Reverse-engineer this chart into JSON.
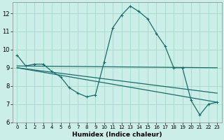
{
  "title": "",
  "xlabel": "Humidex (Indice chaleur)",
  "bg_color": "#cceee8",
  "grid_color": "#aaddcc",
  "line_color": "#1a6b6b",
  "xlim": [
    -0.5,
    23.5
  ],
  "ylim": [
    6,
    12.6
  ],
  "yticks": [
    6,
    7,
    8,
    9,
    10,
    11,
    12
  ],
  "xticks": [
    0,
    1,
    2,
    3,
    4,
    5,
    6,
    7,
    8,
    9,
    10,
    11,
    12,
    13,
    14,
    15,
    16,
    17,
    18,
    19,
    20,
    21,
    22,
    23
  ],
  "series0_x": [
    0,
    1,
    2,
    3,
    4,
    5,
    6,
    7,
    8,
    9,
    10,
    11,
    12,
    13,
    14,
    15,
    16,
    17,
    18,
    19,
    20,
    21,
    22,
    23
  ],
  "series0_y": [
    9.7,
    9.1,
    9.2,
    9.2,
    8.8,
    8.5,
    7.9,
    7.6,
    7.4,
    7.5,
    9.3,
    11.2,
    11.9,
    12.4,
    12.1,
    11.7,
    10.9,
    10.2,
    9.0,
    9.0,
    7.2,
    6.4,
    7.0,
    7.1
  ],
  "line1_x": [
    0,
    23
  ],
  "line1_y": [
    9.1,
    9.0
  ],
  "line2_x": [
    0,
    23
  ],
  "line2_y": [
    9.0,
    7.1
  ],
  "line3_x": [
    0,
    23
  ],
  "line3_y": [
    9.0,
    7.6
  ],
  "xlabel_fontsize": 6.5,
  "tick_fontsize": 5.0,
  "ytick_fontsize": 6.0
}
